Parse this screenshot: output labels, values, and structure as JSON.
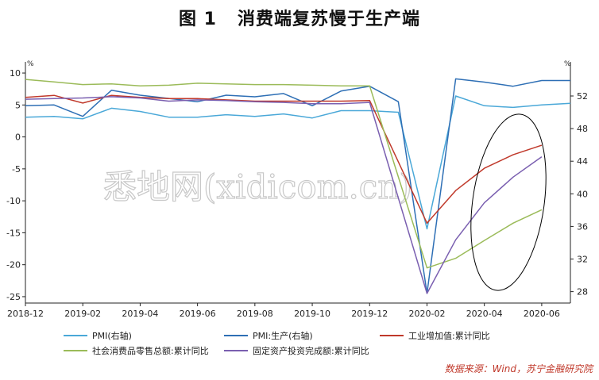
{
  "title": {
    "figure_no": "图 1",
    "text": "消费端复苏慢于生产端"
  },
  "watermark": "悉地网(xidicom.cn)",
  "source": "数据来源：Wind，苏宁金融研究院",
  "colors": {
    "pmi": "#4aa8d8",
    "pmi_production": "#2e6fb5",
    "industrial": "#c0392b",
    "retail": "#9bbb59",
    "fixed_invest": "#7a5fb0",
    "ellipse": "#000000"
  },
  "chart_data": {
    "type": "line",
    "left_axis": {
      "unit": "%",
      "ylim": [
        -26,
        11
      ],
      "ticks": [
        10,
        5,
        0,
        -5,
        -10,
        -15,
        -20,
        -25
      ]
    },
    "right_axis": {
      "unit": "%",
      "ylim": [
        26.6,
        55.6
      ],
      "ticks": [
        52,
        48,
        44,
        40,
        36,
        32,
        28
      ]
    },
    "x_ticks": [
      "2018-12",
      "2019-02",
      "2019-04",
      "2019-06",
      "2019-08",
      "2019-10",
      "2019-12",
      "2020-02",
      "2020-04",
      "2020-06"
    ],
    "x": [
      "2018-12",
      "2019-01",
      "2019-02",
      "2019-03",
      "2019-04",
      "2019-05",
      "2019-06",
      "2019-07",
      "2019-08",
      "2019-09",
      "2019-10",
      "2019-11",
      "2019-12",
      "2020-01",
      "2020-02",
      "2020-03",
      "2020-04",
      "2020-05",
      "2020-06",
      "2020-07"
    ],
    "series": [
      {
        "name": "PMI(右轴)",
        "axis": "right",
        "color_key": "pmi",
        "values": [
          49.4,
          49.5,
          49.2,
          50.5,
          50.1,
          49.4,
          49.4,
          49.7,
          49.5,
          49.8,
          49.3,
          50.2,
          50.2,
          50.0,
          35.7,
          52.0,
          50.8,
          50.6,
          50.9,
          51.1
        ]
      },
      {
        "name": "PMI:生产(右轴)",
        "axis": "right",
        "color_key": "pmi_production",
        "values": [
          50.8,
          50.9,
          49.5,
          52.7,
          52.1,
          51.7,
          51.3,
          52.1,
          51.9,
          52.3,
          50.8,
          52.6,
          53.2,
          51.3,
          27.8,
          54.1,
          53.7,
          53.2,
          53.9,
          53.9
        ]
      },
      {
        "name": "工业增加值:累计同比",
        "axis": "left",
        "color_key": "industrial",
        "values": [
          6.2,
          6.5,
          5.3,
          6.5,
          6.2,
          6.0,
          6.0,
          5.8,
          5.6,
          5.6,
          5.6,
          5.6,
          5.7,
          null,
          -13.5,
          -8.4,
          -4.9,
          -2.8,
          -1.3,
          null
        ]
      },
      {
        "name": "社会消费品零售总额:累计同比",
        "axis": "left",
        "color_key": "retail",
        "values": [
          9.0,
          8.6,
          8.2,
          8.3,
          8.0,
          8.1,
          8.4,
          8.3,
          8.2,
          8.2,
          8.1,
          8.0,
          8.0,
          null,
          -20.5,
          -19.0,
          -16.2,
          -13.5,
          -11.4,
          null
        ]
      },
      {
        "name": "固定资产投资完成额:累计同比",
        "axis": "left",
        "color_key": "fixed_invest",
        "values": [
          5.9,
          6.0,
          6.1,
          6.3,
          6.1,
          5.6,
          5.8,
          5.7,
          5.5,
          5.4,
          5.2,
          5.2,
          5.4,
          null,
          -24.5,
          -16.1,
          -10.3,
          -6.3,
          -3.1,
          null
        ]
      }
    ],
    "legend_position": "bottom",
    "annotation": "ellipse around 2020-03 to 2020-07 recovery"
  }
}
